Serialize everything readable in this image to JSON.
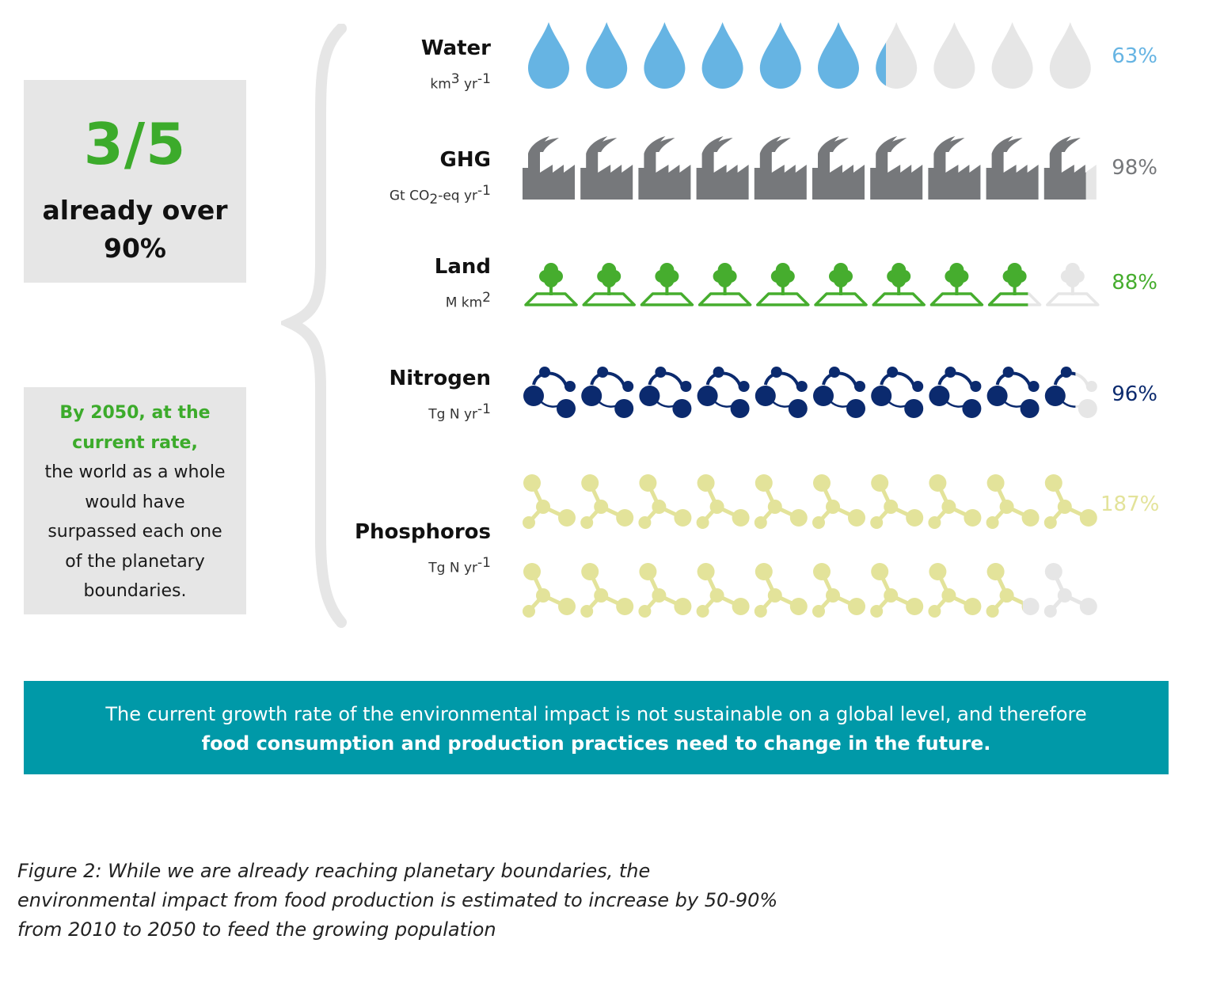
{
  "left_panel": {
    "headline": "3/5",
    "subline_1": "already over",
    "subline_2": "90%",
    "note_highlight_1": "By 2050, at the",
    "note_highlight_2": "current rate,",
    "note_line_1": "the world as a whole",
    "note_line_2": "would have",
    "note_line_3": "surpassed each one",
    "note_line_4": "of the planetary",
    "note_line_5": "boundaries."
  },
  "banner": {
    "line_1": "The current growth rate of the environmental impact is not sustainable on a global level, and therefore",
    "line_2": "food consumption and production practices need to change in the future."
  },
  "caption": {
    "line_1": "Figure 2: While we are already reaching planetary boundaries, the",
    "line_2": "environmental impact from food production is estimated to increase by 50-90%",
    "line_3": "from 2010 to 2050 to feed the growing population"
  },
  "chart_data": {
    "type": "bar",
    "categories": [
      "Water",
      "GHG",
      "Land",
      "Nitrogen",
      "Phosphoros"
    ],
    "units": {
      "water": {
        "base": "km",
        "sup": "3",
        "rest": " yr",
        "sup2": "-1"
      },
      "ghg": {
        "base": "Gt CO",
        "sub": "2",
        "rest": "-eq yr",
        "sup2": "-1"
      },
      "land": {
        "base": "M km",
        "sup": "2"
      },
      "nitrogen": {
        "base": "Tg N yr",
        "sup2": "-1"
      },
      "phosphoros": {
        "base": "Tg N yr",
        "sup2": "-1"
      }
    },
    "values": [
      63,
      98,
      88,
      96,
      187
    ],
    "value_labels": [
      "63%",
      "98%",
      "88%",
      "96%",
      "187%"
    ],
    "icons": [
      "water-drop-icon",
      "factory-icon",
      "tree-icon",
      "nitrogen-molecule-icon",
      "phosphorus-molecule-icon"
    ],
    "colors": {
      "water": "#66b4e3",
      "ghg": "#76787b",
      "land": "#46ad2e",
      "nitrogen": "#0b2a6e",
      "phosphoros": "#e3e39a",
      "empty": "#e6e6e6"
    },
    "icons_per_row": 10
  }
}
